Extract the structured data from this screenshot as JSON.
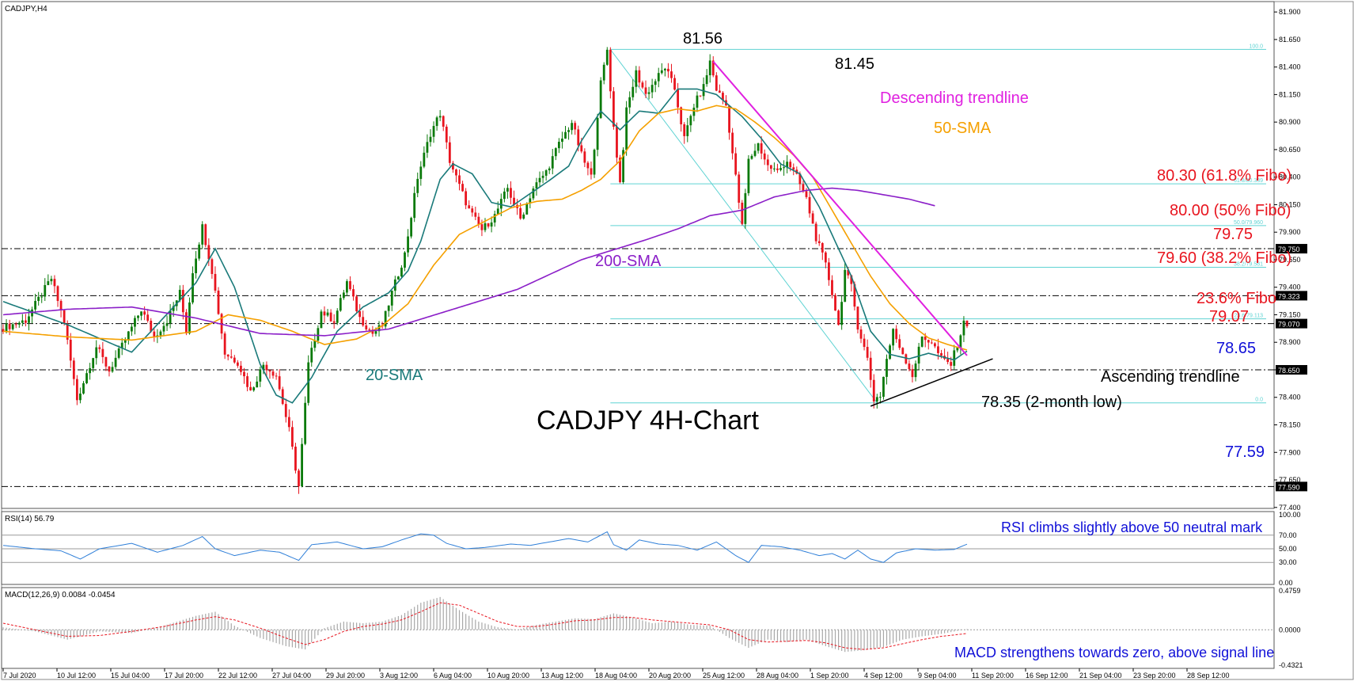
{
  "chart_data": {
    "type": "candlestick",
    "symbol_label": "CADJPY,H4",
    "title": "CADJPY 4H-Chart",
    "x_axis_ticks": [
      "7 Jul 2020",
      "10 Jul 12:00",
      "15 Jul 04:00",
      "17 Jul 20:00",
      "22 Jul 12:00",
      "27 Jul 04:00",
      "29 Jul 20:00",
      "3 Aug 12:00",
      "6 Aug 04:00",
      "10 Aug 20:00",
      "13 Aug 12:00",
      "18 Aug 04:00",
      "20 Aug 20:00",
      "25 Aug 12:00",
      "28 Aug 04:00",
      "1 Sep 20:00",
      "4 Sep 12:00",
      "9 Sep 04:00",
      "11 Sep 20:00",
      "16 Sep 12:00",
      "21 Sep 04:00",
      "23 Sep 20:00",
      "28 Sep 12:00"
    ],
    "price_axis": {
      "ylim": [
        77.42,
        81.98
      ],
      "ticks": [
        "81.900",
        "81.650",
        "81.400",
        "81.150",
        "80.900",
        "80.650",
        "80.400",
        "80.150",
        "79.900",
        "79.650",
        "79.400",
        "79.150",
        "78.900",
        "78.650",
        "78.400",
        "78.150",
        "77.900",
        "77.650",
        "77.400"
      ],
      "highlighted_levels": [
        "79.750",
        "79.323",
        "79.070",
        "78.650",
        "77.590"
      ]
    },
    "price_path": [
      [
        0,
        79.02
      ],
      [
        8,
        79.1
      ],
      [
        16,
        79.48
      ],
      [
        20,
        79.08
      ],
      [
        24,
        78.38
      ],
      [
        30,
        78.86
      ],
      [
        34,
        78.64
      ],
      [
        40,
        78.98
      ],
      [
        44,
        79.2
      ],
      [
        48,
        78.95
      ],
      [
        52,
        79.1
      ],
      [
        56,
        79.35
      ],
      [
        58,
        79.0
      ],
      [
        60,
        79.55
      ],
      [
        63,
        79.95
      ],
      [
        66,
        79.55
      ],
      [
        70,
        78.8
      ],
      [
        74,
        78.72
      ],
      [
        78,
        78.45
      ],
      [
        82,
        78.7
      ],
      [
        86,
        78.6
      ],
      [
        90,
        78.1
      ],
      [
        93,
        77.59
      ],
      [
        96,
        78.7
      ],
      [
        100,
        79.18
      ],
      [
        104,
        79.1
      ],
      [
        108,
        79.45
      ],
      [
        112,
        79.12
      ],
      [
        116,
        78.98
      ],
      [
        119,
        79.05
      ],
      [
        122,
        79.35
      ],
      [
        126,
        79.7
      ],
      [
        130,
        80.4
      ],
      [
        134,
        80.8
      ],
      [
        137,
        80.98
      ],
      [
        140,
        80.55
      ],
      [
        143,
        80.32
      ],
      [
        146,
        80.1
      ],
      [
        150,
        79.92
      ],
      [
        154,
        80.05
      ],
      [
        158,
        80.3
      ],
      [
        162,
        80.02
      ],
      [
        166,
        80.3
      ],
      [
        170,
        80.45
      ],
      [
        174,
        80.7
      ],
      [
        178,
        80.9
      ],
      [
        181,
        80.6
      ],
      [
        184,
        80.4
      ],
      [
        187,
        81.25
      ],
      [
        189,
        81.56
      ],
      [
        191,
        80.85
      ],
      [
        193,
        80.35
      ],
      [
        195,
        81.0
      ],
      [
        198,
        81.35
      ],
      [
        201,
        81.15
      ],
      [
        204,
        81.28
      ],
      [
        207,
        81.4
      ],
      [
        210,
        81.2
      ],
      [
        213,
        80.75
      ],
      [
        216,
        81.05
      ],
      [
        219,
        81.22
      ],
      [
        221,
        81.45
      ],
      [
        223,
        81.2
      ],
      [
        226,
        81.05
      ],
      [
        229,
        80.4
      ],
      [
        231,
        79.95
      ],
      [
        233,
        80.55
      ],
      [
        236,
        80.7
      ],
      [
        239,
        80.5
      ],
      [
        242,
        80.45
      ],
      [
        245,
        80.55
      ],
      [
        248,
        80.4
      ],
      [
        251,
        80.2
      ],
      [
        254,
        79.85
      ],
      [
        257,
        79.6
      ],
      [
        259,
        79.35
      ],
      [
        261,
        79.05
      ],
      [
        263,
        79.55
      ],
      [
        265,
        79.4
      ],
      [
        267,
        79.05
      ],
      [
        270,
        78.75
      ],
      [
        272,
        78.38
      ],
      [
        274,
        78.42
      ],
      [
        276,
        78.75
      ],
      [
        278,
        79.0
      ],
      [
        281,
        78.8
      ],
      [
        284,
        78.6
      ],
      [
        287,
        78.95
      ],
      [
        290,
        78.9
      ],
      [
        293,
        78.75
      ],
      [
        296,
        78.7
      ],
      [
        300,
        79.07
      ]
    ],
    "bar_slot_width": 4.06,
    "sma_20": [
      [
        0,
        79.27
      ],
      [
        20,
        79.06
      ],
      [
        40,
        78.81
      ],
      [
        60,
        79.44
      ],
      [
        66,
        79.75
      ],
      [
        72,
        79.4
      ],
      [
        80,
        78.7
      ],
      [
        85,
        78.42
      ],
      [
        90,
        78.35
      ],
      [
        96,
        78.58
      ],
      [
        104,
        79.0
      ],
      [
        112,
        79.22
      ],
      [
        120,
        79.35
      ],
      [
        126,
        79.55
      ],
      [
        130,
        79.82
      ],
      [
        136,
        80.38
      ],
      [
        140,
        80.52
      ],
      [
        146,
        80.43
      ],
      [
        152,
        80.17
      ],
      [
        158,
        80.13
      ],
      [
        164,
        80.25
      ],
      [
        170,
        80.37
      ],
      [
        176,
        80.5
      ],
      [
        180,
        80.73
      ],
      [
        186,
        81.0
      ],
      [
        192,
        80.83
      ],
      [
        198,
        81.0
      ],
      [
        204,
        80.98
      ],
      [
        210,
        81.2
      ],
      [
        216,
        81.2
      ],
      [
        222,
        81.15
      ],
      [
        230,
        80.95
      ],
      [
        236,
        80.75
      ],
      [
        242,
        80.52
      ],
      [
        248,
        80.43
      ],
      [
        254,
        80.13
      ],
      [
        260,
        79.75
      ],
      [
        264,
        79.5
      ],
      [
        270,
        79.0
      ],
      [
        276,
        78.79
      ],
      [
        282,
        78.75
      ],
      [
        288,
        78.8
      ],
      [
        296,
        78.74
      ],
      [
        300,
        78.82
      ]
    ],
    "sma_50": [
      [
        0,
        79.0
      ],
      [
        20,
        78.95
      ],
      [
        40,
        78.92
      ],
      [
        60,
        79.0
      ],
      [
        70,
        79.15
      ],
      [
        80,
        79.1
      ],
      [
        90,
        79.0
      ],
      [
        100,
        78.88
      ],
      [
        110,
        78.93
      ],
      [
        118,
        79.05
      ],
      [
        126,
        79.25
      ],
      [
        134,
        79.6
      ],
      [
        142,
        79.88
      ],
      [
        150,
        80.0
      ],
      [
        158,
        80.12
      ],
      [
        166,
        80.18
      ],
      [
        174,
        80.2
      ],
      [
        180,
        80.28
      ],
      [
        186,
        80.38
      ],
      [
        192,
        80.55
      ],
      [
        198,
        80.82
      ],
      [
        204,
        80.98
      ],
      [
        210,
        81.02
      ],
      [
        216,
        81.0
      ],
      [
        222,
        81.05
      ],
      [
        228,
        81.02
      ],
      [
        234,
        80.9
      ],
      [
        240,
        80.76
      ],
      [
        246,
        80.6
      ],
      [
        252,
        80.4
      ],
      [
        258,
        80.1
      ],
      [
        264,
        79.8
      ],
      [
        270,
        79.5
      ],
      [
        276,
        79.25
      ],
      [
        282,
        79.07
      ],
      [
        288,
        78.94
      ],
      [
        294,
        78.88
      ],
      [
        300,
        78.83
      ]
    ],
    "sma_200": [
      [
        0,
        79.15
      ],
      [
        20,
        79.2
      ],
      [
        40,
        79.22
      ],
      [
        60,
        79.12
      ],
      [
        80,
        78.98
      ],
      [
        100,
        78.96
      ],
      [
        120,
        79.02
      ],
      [
        140,
        79.2
      ],
      [
        160,
        79.38
      ],
      [
        180,
        79.65
      ],
      [
        200,
        79.83
      ],
      [
        210,
        79.93
      ],
      [
        220,
        80.05
      ],
      [
        230,
        80.1
      ],
      [
        240,
        80.22
      ],
      [
        250,
        80.28
      ],
      [
        258,
        80.3
      ],
      [
        266,
        80.28
      ],
      [
        274,
        80.24
      ],
      [
        282,
        80.2
      ],
      [
        290,
        80.14
      ]
    ],
    "fibonacci": {
      "start_bar": 189,
      "end_bar": 300,
      "high": 81.56,
      "low": 78.35,
      "level_labels": [
        "100.0",
        "23.6/79.113",
        "38.2/79.581",
        "50.0/79.960",
        "61.8/80.339",
        "0.0"
      ],
      "level_values": [
        81.56,
        79.113,
        79.581,
        79.96,
        80.339,
        78.35
      ]
    },
    "trendlines": {
      "descending": [
        [
          221,
          81.45
        ],
        [
          300,
          78.78
        ]
      ],
      "ascending": [
        [
          270,
          78.32
        ],
        [
          308,
          78.75
        ]
      ]
    },
    "annotations": {
      "high_1": "81.56",
      "high_2": "81.45",
      "descending_trendline": "Descending trendline",
      "sma50": "50-SMA",
      "fibo_618": "80.30 (61.8% Fibo)",
      "fibo_50": "80.00 (50% Fibo)",
      "level_7975": "79.75",
      "fibo_382": "79.60 (38.2% Fibo)",
      "sma200": "200-SMA",
      "fibo_236": "23.6% Fibo",
      "level_7907": "79.07",
      "level_7865": "78.65",
      "sma20": "20-SMA",
      "ascending_trendline": "Ascending trendline",
      "low_label": "78.35 (2-month low)",
      "level_7759": "77.59"
    },
    "rsi": {
      "label": "RSI(14) 56.79",
      "ticks": [
        "100.00",
        "70.00",
        "50.00",
        "30.00",
        "0.00"
      ],
      "levels": [
        70,
        50,
        30
      ],
      "annotation": "RSI climbs slightly above 50 neutral mark",
      "path": [
        [
          0,
          55
        ],
        [
          10,
          50
        ],
        [
          18,
          47
        ],
        [
          24,
          35
        ],
        [
          30,
          50
        ],
        [
          40,
          58
        ],
        [
          48,
          45
        ],
        [
          56,
          55
        ],
        [
          62,
          68
        ],
        [
          66,
          50
        ],
        [
          72,
          40
        ],
        [
          80,
          48
        ],
        [
          86,
          45
        ],
        [
          92,
          33
        ],
        [
          96,
          56
        ],
        [
          104,
          60
        ],
        [
          112,
          50
        ],
        [
          118,
          53
        ],
        [
          124,
          63
        ],
        [
          130,
          72
        ],
        [
          134,
          70
        ],
        [
          138,
          58
        ],
        [
          144,
          50
        ],
        [
          150,
          52
        ],
        [
          158,
          57
        ],
        [
          164,
          55
        ],
        [
          170,
          60
        ],
        [
          176,
          65
        ],
        [
          182,
          60
        ],
        [
          188,
          75
        ],
        [
          190,
          56
        ],
        [
          194,
          48
        ],
        [
          198,
          63
        ],
        [
          204,
          57
        ],
        [
          210,
          55
        ],
        [
          216,
          48
        ],
        [
          222,
          60
        ],
        [
          228,
          40
        ],
        [
          232,
          30
        ],
        [
          236,
          55
        ],
        [
          242,
          53
        ],
        [
          248,
          48
        ],
        [
          254,
          40
        ],
        [
          258,
          43
        ],
        [
          262,
          35
        ],
        [
          266,
          48
        ],
        [
          270,
          35
        ],
        [
          274,
          30
        ],
        [
          278,
          44
        ],
        [
          284,
          50
        ],
        [
          290,
          48
        ],
        [
          296,
          49
        ],
        [
          300,
          56.79
        ]
      ]
    },
    "macd": {
      "label": "MACD(12,26,9) 0.0084 -0.0454",
      "ticks": [
        "0.4759",
        "0.0000",
        "-0.4321"
      ],
      "ylim": [
        -0.4321,
        0.4759
      ],
      "annotation": "MACD strengthens towards zero, above signal line",
      "histogram": [
        [
          0,
          0.03
        ],
        [
          10,
          -0.02
        ],
        [
          20,
          -0.12
        ],
        [
          30,
          -0.02
        ],
        [
          40,
          -0.04
        ],
        [
          50,
          0.05
        ],
        [
          60,
          0.17
        ],
        [
          66,
          0.22
        ],
        [
          72,
          0.05
        ],
        [
          80,
          -0.1
        ],
        [
          88,
          -0.2
        ],
        [
          94,
          -0.24
        ],
        [
          100,
          0.02
        ],
        [
          106,
          0.1
        ],
        [
          112,
          0.08
        ],
        [
          118,
          0.1
        ],
        [
          124,
          0.18
        ],
        [
          130,
          0.33
        ],
        [
          136,
          0.4
        ],
        [
          142,
          0.24
        ],
        [
          148,
          0.1
        ],
        [
          154,
          0.03
        ],
        [
          160,
          0.0
        ],
        [
          166,
          0.06
        ],
        [
          172,
          0.1
        ],
        [
          178,
          0.14
        ],
        [
          184,
          0.13
        ],
        [
          190,
          0.2
        ],
        [
          196,
          0.15
        ],
        [
          202,
          0.08
        ],
        [
          208,
          0.1
        ],
        [
          214,
          0.06
        ],
        [
          220,
          0.05
        ],
        [
          226,
          -0.1
        ],
        [
          232,
          -0.22
        ],
        [
          238,
          -0.12
        ],
        [
          244,
          -0.15
        ],
        [
          250,
          -0.12
        ],
        [
          256,
          -0.2
        ],
        [
          262,
          -0.27
        ],
        [
          268,
          -0.25
        ],
        [
          274,
          -0.21
        ],
        [
          280,
          -0.12
        ],
        [
          286,
          -0.08
        ],
        [
          292,
          -0.05
        ],
        [
          300,
          0.008
        ]
      ],
      "signal": [
        [
          0,
          0.08
        ],
        [
          10,
          0.0
        ],
        [
          20,
          -0.08
        ],
        [
          30,
          -0.07
        ],
        [
          40,
          -0.02
        ],
        [
          50,
          0.04
        ],
        [
          60,
          0.12
        ],
        [
          66,
          0.16
        ],
        [
          72,
          0.12
        ],
        [
          80,
          0.02
        ],
        [
          88,
          -0.1
        ],
        [
          94,
          -0.18
        ],
        [
          100,
          -0.12
        ],
        [
          106,
          -0.02
        ],
        [
          112,
          0.04
        ],
        [
          118,
          0.07
        ],
        [
          124,
          0.12
        ],
        [
          130,
          0.22
        ],
        [
          136,
          0.33
        ],
        [
          142,
          0.3
        ],
        [
          148,
          0.2
        ],
        [
          154,
          0.1
        ],
        [
          160,
          0.04
        ],
        [
          166,
          0.04
        ],
        [
          172,
          0.07
        ],
        [
          178,
          0.11
        ],
        [
          184,
          0.12
        ],
        [
          190,
          0.15
        ],
        [
          196,
          0.15
        ],
        [
          202,
          0.12
        ],
        [
          208,
          0.1
        ],
        [
          214,
          0.08
        ],
        [
          220,
          0.06
        ],
        [
          226,
          0.0
        ],
        [
          232,
          -0.12
        ],
        [
          238,
          -0.15
        ],
        [
          244,
          -0.14
        ],
        [
          250,
          -0.13
        ],
        [
          256,
          -0.16
        ],
        [
          262,
          -0.22
        ],
        [
          268,
          -0.24
        ],
        [
          274,
          -0.22
        ],
        [
          280,
          -0.17
        ],
        [
          286,
          -0.12
        ],
        [
          292,
          -0.08
        ],
        [
          300,
          -0.0454
        ]
      ]
    },
    "colors": {
      "candle_up": "#0a7a0a",
      "candle_down": "#e8141e",
      "sma20": "#1a7a7a",
      "sma50": "#f5a000",
      "sma200": "#8b1fc8",
      "fib": "#5fd3d3",
      "descending": "#e020e0",
      "ascending": "#000000",
      "annotation_red": "#e8141e",
      "annotation_blue": "#1010d8",
      "rsi_line": "#2f7fd8",
      "macd_hist": "#a8a8a8",
      "macd_signal": "#e8141e",
      "label_box": "#000000"
    }
  }
}
